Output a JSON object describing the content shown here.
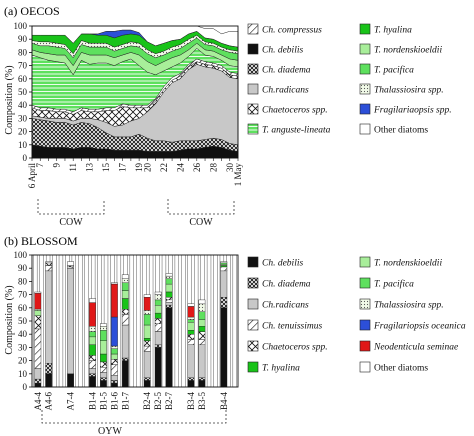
{
  "panel_a": {
    "title": "(a)  OECOS",
    "ylabel": "Composition (%)",
    "yticks": [
      "0",
      "10",
      "20",
      "30",
      "40",
      "50",
      "60",
      "70",
      "80",
      "90",
      "100"
    ],
    "xticks": [
      "6 April",
      "7",
      "8",
      "9",
      "10",
      "11",
      "12",
      "13",
      "14",
      "15",
      "16",
      "17",
      "18",
      "19",
      "20",
      "21",
      "22",
      "23",
      "24",
      "25",
      "26",
      "27",
      "28",
      "29",
      "30",
      "1 May"
    ],
    "xtick_labels_shown": [
      "6 April",
      "7",
      "9",
      "11",
      "13",
      "15",
      "17",
      "19",
      "20",
      "22",
      "24",
      "26",
      "28",
      "30",
      "1 May"
    ],
    "group_labels": [
      "COW",
      "COW"
    ]
  },
  "panel_b": {
    "title": "(b)  BLOSSOM",
    "ylabel": "Composition (%)",
    "yticks": [
      "0",
      "10",
      "20",
      "30",
      "40",
      "50",
      "60",
      "70",
      "80",
      "90",
      "100"
    ],
    "categories": [
      "A4-4",
      "A4-6",
      "A7-4",
      "B1-4",
      "B1-5",
      "B1-6",
      "B1-7",
      "B2-4",
      "B2-5",
      "B2-7",
      "B3-4",
      "B3-5",
      "B4-4"
    ],
    "group_label": "OYW"
  },
  "legend_a": [
    {
      "name": "Ch. compressus",
      "pattern": "hatch-back",
      "italic": true
    },
    {
      "name": "T. hyalina",
      "pattern": "green-dark",
      "italic": true
    },
    {
      "name": "Ch. debilis",
      "pattern": "black",
      "italic": true
    },
    {
      "name": "T. nordenskioeldii",
      "pattern": "green-light",
      "italic": true
    },
    {
      "name": "Ch. diadema",
      "pattern": "cross",
      "italic": true
    },
    {
      "name": "T. pacifica",
      "pattern": "green-mid",
      "italic": true
    },
    {
      "name": "Ch.radicans",
      "pattern": "gray",
      "italic": true
    },
    {
      "name": "Thalassiosira spp.",
      "pattern": "dots",
      "italic": true
    },
    {
      "name": "Chaetoceros spp.",
      "pattern": "diamond",
      "italic": true
    },
    {
      "name": "Fragilariaopsis spp.",
      "pattern": "blue",
      "italic": true
    },
    {
      "name": "T. anguste-lineata",
      "pattern": "hlines",
      "italic": true
    },
    {
      "name": "Other diatoms",
      "pattern": "white",
      "italic": false
    }
  ],
  "legend_b": [
    {
      "name": "Ch. debilis",
      "pattern": "black",
      "italic": true
    },
    {
      "name": "T. nordenskioeldii",
      "pattern": "green-light",
      "italic": true
    },
    {
      "name": "Ch. diadema",
      "pattern": "cross",
      "italic": true
    },
    {
      "name": "T. pacifica",
      "pattern": "green-mid",
      "italic": true
    },
    {
      "name": "Ch.radicans",
      "pattern": "gray",
      "italic": true
    },
    {
      "name": "Thalassiosira spp.",
      "pattern": "dots",
      "italic": true
    },
    {
      "name": "Ch. tenuissimus",
      "pattern": "hatch-back",
      "italic": true
    },
    {
      "name": "Fragilariopsis oceanica",
      "pattern": "blue",
      "italic": true
    },
    {
      "name": "Chaetoceros spp.",
      "pattern": "diamond",
      "italic": true
    },
    {
      "name": "Neodenticula seminae",
      "pattern": "red",
      "italic": true
    },
    {
      "name": "T. hyalina",
      "pattern": "green-dark",
      "italic": true
    },
    {
      "name": "Other diatoms",
      "pattern": "white",
      "italic": false
    }
  ],
  "colors": {
    "green_dark": "#19c319",
    "green_mid": "#5ee05e",
    "green_light": "#a8ee9a",
    "gray": "#c8c8c8",
    "blue": "#2c4fd8",
    "red": "#e01818",
    "black": "#111111"
  },
  "chart_data": [
    {
      "type": "area",
      "title": "(a)  OECOS",
      "ylabel": "Composition (%)",
      "ylim": [
        0,
        100
      ],
      "x": [
        "6 April",
        "7",
        "8",
        "9",
        "10",
        "11",
        "12",
        "13",
        "14",
        "15",
        "16",
        "17",
        "18",
        "19",
        "20",
        "21",
        "22",
        "23",
        "24",
        "25",
        "26",
        "27",
        "28",
        "29",
        "30",
        "1 May"
      ],
      "series": [
        {
          "name": "Ch. debilis",
          "pattern": "black",
          "values": [
            10,
            9,
            8,
            8,
            8,
            7,
            8,
            8,
            7,
            7,
            6,
            6,
            6,
            6,
            5,
            5,
            5,
            5,
            6,
            7,
            7,
            8,
            9,
            8,
            6,
            5
          ]
        },
        {
          "name": "Ch. diadema",
          "pattern": "cross",
          "values": [
            20,
            20,
            20,
            19,
            19,
            18,
            19,
            18,
            16,
            12,
            10,
            10,
            10,
            12,
            10,
            8,
            8,
            7,
            7,
            6,
            6,
            6,
            6,
            6,
            5,
            5
          ]
        },
        {
          "name": "Ch.radicans",
          "pattern": "gray",
          "values": [
            2,
            2,
            2,
            3,
            3,
            3,
            3,
            4,
            6,
            8,
            8,
            9,
            12,
            12,
            20,
            28,
            37,
            45,
            47,
            54,
            58,
            55,
            53,
            52,
            50,
            50
          ]
        },
        {
          "name": "Chaetoceros spp.",
          "pattern": "diamond",
          "values": [
            6,
            5,
            6,
            5,
            5,
            5,
            6,
            5,
            6,
            9,
            12,
            14,
            10,
            8,
            3,
            2,
            2,
            2,
            2,
            2,
            2,
            2,
            2,
            2,
            2,
            2
          ]
        },
        {
          "name": "Ch. compressus",
          "pattern": "hatch-back",
          "values": [
            2,
            2,
            2,
            2,
            2,
            2,
            2,
            2,
            2,
            2,
            2,
            2,
            2,
            2,
            2,
            2,
            2,
            2,
            2,
            2,
            2,
            2,
            2,
            2,
            2,
            2
          ]
        },
        {
          "name": "T. anguste-lineata",
          "pattern": "hlines",
          "values": [
            38,
            38,
            36,
            36,
            35,
            28,
            36,
            34,
            35,
            34,
            32,
            32,
            35,
            30,
            25,
            18,
            12,
            8,
            8,
            6,
            8,
            5,
            5,
            4,
            5,
            5
          ]
        },
        {
          "name": "T. nordenskioeldii",
          "pattern": "green-light",
          "values": [
            4,
            4,
            5,
            5,
            6,
            7,
            6,
            7,
            6,
            6,
            6,
            5,
            5,
            8,
            8,
            7,
            7,
            7,
            6,
            5,
            4,
            4,
            4,
            4,
            5,
            5
          ]
        },
        {
          "name": "T. pacifica",
          "pattern": "green-mid",
          "values": [
            5,
            5,
            6,
            6,
            5,
            6,
            6,
            6,
            6,
            6,
            5,
            5,
            5,
            6,
            6,
            6,
            5,
            5,
            5,
            5,
            4,
            4,
            4,
            4,
            5,
            5
          ]
        },
        {
          "name": "Thalassiosira spp.",
          "pattern": "dots",
          "values": [
            2,
            3,
            3,
            3,
            3,
            3,
            3,
            3,
            3,
            3,
            3,
            3,
            3,
            3,
            3,
            3,
            3,
            3,
            3,
            3,
            2,
            2,
            2,
            2,
            2,
            2
          ]
        },
        {
          "name": "T. hyalina",
          "pattern": "green-dark",
          "values": [
            4,
            5,
            5,
            6,
            7,
            8,
            5,
            7,
            6,
            6,
            7,
            7,
            6,
            6,
            6,
            6,
            6,
            5,
            4,
            4,
            3,
            3,
            3,
            3,
            3,
            3
          ]
        },
        {
          "name": "Fragilariaopsis spp.",
          "pattern": "blue",
          "values": [
            0,
            0,
            0,
            0,
            0,
            0,
            0,
            0,
            1,
            3,
            5,
            4,
            3,
            2,
            0,
            0,
            0,
            0,
            0,
            0,
            0,
            0,
            0,
            0,
            0,
            0
          ]
        },
        {
          "name": "Other diatoms",
          "pattern": "white",
          "values": [
            7,
            7,
            7,
            7,
            7,
            13,
            6,
            6,
            6,
            4,
            4,
            3,
            3,
            5,
            12,
            15,
            13,
            11,
            10,
            6,
            4,
            7,
            8,
            7,
            11,
            12
          ]
        }
      ]
    },
    {
      "type": "bar",
      "title": "(b)  BLOSSOM",
      "ylabel": "Composition (%)",
      "ylim": [
        0,
        100
      ],
      "categories": [
        "A4-4",
        "A4-6",
        "A7-4",
        "B1-4",
        "B1-5",
        "B1-6",
        "B1-7",
        "B2-4",
        "B2-5",
        "B2-7",
        "B3-4",
        "B3-5",
        "B4-4"
      ],
      "series": [
        {
          "name": "Ch. debilis",
          "pattern": "black",
          "values": [
            3,
            10,
            10,
            8,
            5,
            3,
            20,
            5,
            30,
            60,
            5,
            5,
            60
          ]
        },
        {
          "name": "Ch. diadema",
          "pattern": "cross",
          "values": [
            3,
            8,
            0,
            2,
            2,
            2,
            2,
            2,
            2,
            2,
            2,
            2,
            8
          ]
        },
        {
          "name": "Ch.radicans",
          "pattern": "gray",
          "values": [
            8,
            70,
            80,
            4,
            4,
            4,
            25,
            20,
            10,
            2,
            25,
            25,
            20
          ]
        },
        {
          "name": "Ch. tenuissimus",
          "pattern": "hatch-back",
          "values": [
            30,
            4,
            1,
            6,
            4,
            8,
            8,
            4,
            6,
            2,
            4,
            4,
            3
          ]
        },
        {
          "name": "Chaetoceros spp.",
          "pattern": "diamond",
          "values": [
            10,
            2,
            1,
            4,
            4,
            4,
            4,
            4,
            4,
            2,
            4,
            6,
            0
          ]
        },
        {
          "name": "T. hyalina",
          "pattern": "green-dark",
          "values": [
            0,
            0,
            0,
            8,
            6,
            0,
            8,
            2,
            4,
            4,
            3,
            4,
            1
          ]
        },
        {
          "name": "T. nordenskioeldii",
          "pattern": "green-light",
          "values": [
            4,
            0,
            0,
            6,
            10,
            4,
            6,
            10,
            6,
            6,
            6,
            5,
            1
          ]
        },
        {
          "name": "T. pacifica",
          "pattern": "green-mid",
          "values": [
            0,
            0,
            0,
            4,
            8,
            4,
            6,
            8,
            4,
            4,
            2,
            6,
            1
          ]
        },
        {
          "name": "Thalassiosira spp.",
          "pattern": "dots",
          "values": [
            1,
            0,
            0,
            4,
            3,
            2,
            3,
            3,
            4,
            2,
            2,
            6,
            0
          ]
        },
        {
          "name": "Fragilariopsis oceanica",
          "pattern": "blue",
          "values": [
            0,
            0,
            0,
            0,
            0,
            22,
            0,
            0,
            0,
            0,
            0,
            0,
            0
          ]
        },
        {
          "name": "Neodenticula seminae",
          "pattern": "red",
          "values": [
            12,
            0,
            0,
            18,
            0,
            25,
            0,
            10,
            0,
            0,
            8,
            0,
            0
          ]
        },
        {
          "name": "Other diatoms",
          "pattern": "white",
          "values": [
            1,
            1,
            3,
            3,
            2,
            1,
            3,
            2,
            2,
            2,
            2,
            3,
            1
          ]
        }
      ]
    }
  ]
}
